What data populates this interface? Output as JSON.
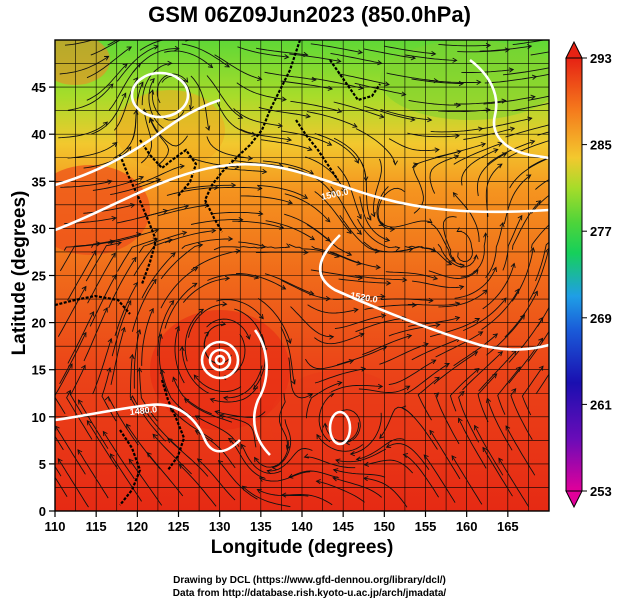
{
  "title": "GSM 06Z09Jun2023 (850.0hPa)",
  "xlabel": "Longitude (degrees)",
  "ylabel": "Latitude  (degrees)",
  "credits": [
    "Drawing by DCL (https://www.gfd-dennou.org/library/dcl/)",
    "Data from http://database.rish.kyoto-u.ac.jp/arch/jmadata/"
  ],
  "map": {
    "lon_range": [
      110,
      170
    ],
    "lat_range": [
      0,
      50
    ],
    "lon_ticks": [
      110,
      115,
      120,
      125,
      130,
      135,
      140,
      145,
      150,
      155,
      160,
      165
    ],
    "lat_ticks": [
      0,
      5,
      10,
      15,
      20,
      25,
      30,
      35,
      40,
      45
    ],
    "grid": true,
    "field": "temperature (K), shaded",
    "overlays": [
      "streamlines (wind)",
      "geopotential height contours (white)",
      "coastlines (black)"
    ],
    "contour_labels": [
      "1500.0",
      "1520.0",
      "1480.0"
    ],
    "typhoon_center": {
      "lon": 130,
      "lat": 17.5
    }
  },
  "colorbar": {
    "min": 253,
    "max": 293,
    "tick_labels": [
      "293",
      "285",
      "277",
      "269",
      "261",
      "253"
    ],
    "colors": [
      "#e2009a",
      "#1a0fb0",
      "#1f9ee6",
      "#16d05a",
      "#7ad62a",
      "#f3c82e",
      "#f57a1c",
      "#e62214"
    ]
  }
}
